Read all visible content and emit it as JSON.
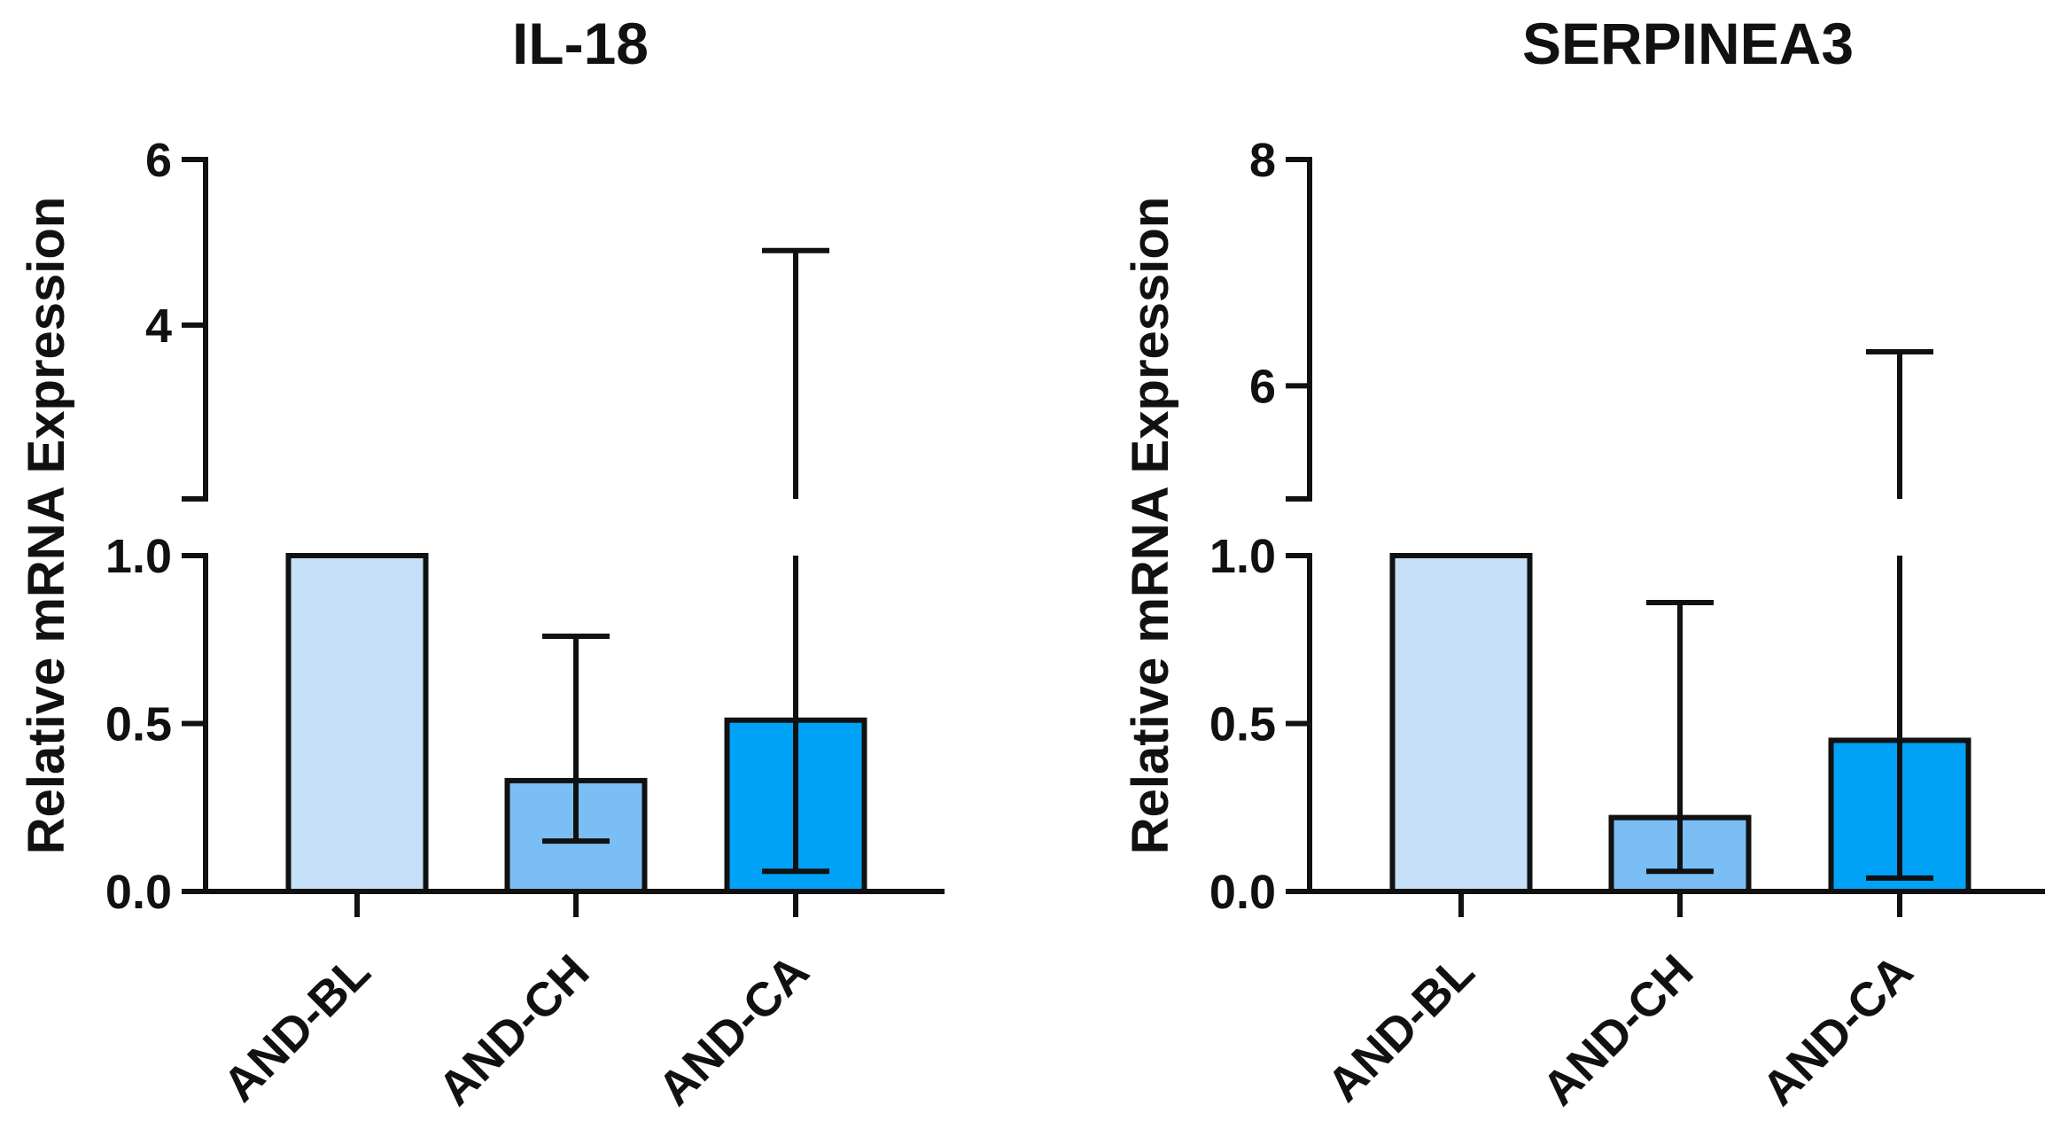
{
  "chart_data": [
    {
      "type": "bar",
      "title": "IL-18",
      "ylabel": "Relative mRNA Expression",
      "xlabel": "",
      "categories": [
        "AND-BL",
        "AND-CH",
        "AND-CA"
      ],
      "values": [
        1.0,
        0.33,
        0.51
      ],
      "error_low": [
        1.0,
        0.15,
        0.06
      ],
      "error_high": [
        1.0,
        0.76,
        4.9
      ],
      "colors": [
        "#C5E0F7",
        "#7BBEF5",
        "#00A2F7"
      ],
      "y_axis_break": true,
      "ylim_lower": [
        0,
        1.0
      ],
      "ylim_upper": [
        1.9,
        6
      ],
      "yticks_lower": [
        "0.0",
        "0.5",
        "1.0"
      ],
      "yticks_upper": [
        "4",
        "6"
      ]
    },
    {
      "type": "bar",
      "title": "SERPINEA3",
      "ylabel": "Relative mRNA Expression",
      "xlabel": "",
      "categories": [
        "AND-BL",
        "AND-CH",
        "AND-CA"
      ],
      "values": [
        1.0,
        0.22,
        0.45
      ],
      "error_low": [
        1.0,
        0.06,
        0.04
      ],
      "error_high": [
        1.0,
        0.86,
        6.3
      ],
      "colors": [
        "#C5E0F7",
        "#7BBEF5",
        "#00A2F7"
      ],
      "y_axis_break": true,
      "ylim_lower": [
        0,
        1.0
      ],
      "ylim_upper": [
        5.0,
        8
      ],
      "yticks_lower": [
        "0.0",
        "0.5",
        "1.0"
      ],
      "yticks_upper": [
        "6",
        "8"
      ]
    }
  ]
}
